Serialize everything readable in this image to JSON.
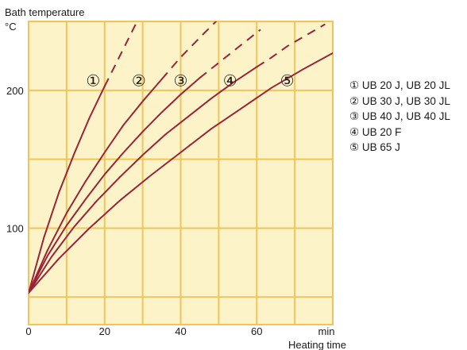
{
  "chart_data": {
    "type": "line",
    "ylabel": "Bath temperature",
    "yunit": "°C",
    "xlabel": "Heating time",
    "xunit": "min",
    "xlim": [
      0,
      80
    ],
    "ylim": [
      30,
      250
    ],
    "x_ticks": [
      0,
      20,
      40,
      60
    ],
    "y_ticks": [
      100,
      200
    ],
    "grid": true,
    "background_color": "#fdf3c9",
    "grid_color": "#f0c45a",
    "line_color": "#9b2337",
    "legend_position": "right",
    "series": [
      {
        "name": "UB 20 J, UB 20 JL",
        "marker": "①",
        "solid": [
          [
            0,
            53
          ],
          [
            4,
            93
          ],
          [
            8,
            126
          ],
          [
            12,
            154
          ],
          [
            16,
            180
          ],
          [
            20,
            203
          ]
        ],
        "dashed": [
          [
            20,
            203
          ],
          [
            24,
            225
          ],
          [
            28,
            247
          ],
          [
            36,
            289
          ]
        ]
      },
      {
        "name": "UB 30 J, UB 30 JL",
        "marker": "②",
        "solid": [
          [
            0,
            53
          ],
          [
            5,
            84
          ],
          [
            10,
            111
          ],
          [
            15,
            134
          ],
          [
            20,
            155
          ],
          [
            25,
            175
          ],
          [
            30,
            192
          ],
          [
            35,
            208
          ]
        ],
        "dashed": [
          [
            35,
            208
          ],
          [
            40,
            224
          ],
          [
            46,
            241
          ],
          [
            53,
            260
          ]
        ]
      },
      {
        "name": "UB 40 J, UB 40 JL",
        "marker": "③",
        "solid": [
          [
            0,
            53
          ],
          [
            5,
            80
          ],
          [
            10,
            102
          ],
          [
            15,
            121
          ],
          [
            20,
            139
          ],
          [
            25,
            155
          ],
          [
            30,
            170
          ],
          [
            35,
            184
          ],
          [
            40,
            197
          ],
          [
            45,
            209
          ]
        ],
        "dashed": [
          [
            45,
            209
          ],
          [
            50,
            220
          ],
          [
            55,
            231
          ],
          [
            61,
            244
          ]
        ]
      },
      {
        "name": "UB 20 F",
        "marker": "④",
        "solid": [
          [
            0,
            53
          ],
          [
            6,
            79
          ],
          [
            12,
            101
          ],
          [
            18,
            120
          ],
          [
            24,
            137
          ],
          [
            30,
            153
          ],
          [
            36,
            168
          ],
          [
            42,
            181
          ],
          [
            48,
            194
          ],
          [
            54,
            206
          ],
          [
            60,
            217
          ]
        ],
        "dashed": [
          [
            60,
            217
          ],
          [
            64,
            224
          ],
          [
            68,
            232
          ],
          [
            73,
            240
          ],
          [
            78,
            248
          ]
        ]
      },
      {
        "name": "UB 65 J",
        "marker": "⑤",
        "solid": [
          [
            0,
            53
          ],
          [
            8,
            78
          ],
          [
            16,
            100
          ],
          [
            24,
            120
          ],
          [
            32,
            138
          ],
          [
            40,
            155
          ],
          [
            48,
            172
          ],
          [
            56,
            187
          ],
          [
            64,
            202
          ],
          [
            72,
            215
          ],
          [
            80,
            227
          ],
          [
            84,
            233
          ]
        ],
        "dashed": []
      }
    ],
    "markers": [
      {
        "label": "①",
        "x": 17,
        "y": 207
      },
      {
        "label": "②",
        "x": 29,
        "y": 207
      },
      {
        "label": "③",
        "x": 40,
        "y": 207
      },
      {
        "label": "④",
        "x": 53,
        "y": 207
      },
      {
        "label": "⑤",
        "x": 68,
        "y": 207
      }
    ]
  },
  "legend": [
    {
      "marker": "①",
      "text": "UB 20 J, UB 20 JL"
    },
    {
      "marker": "②",
      "text": "UB 30 J, UB 30 JL"
    },
    {
      "marker": "③",
      "text": "UB 40 J, UB 40 JL"
    },
    {
      "marker": "④",
      "text": "UB 20 F"
    },
    {
      "marker": "⑤",
      "text": "UB 65 J"
    }
  ]
}
